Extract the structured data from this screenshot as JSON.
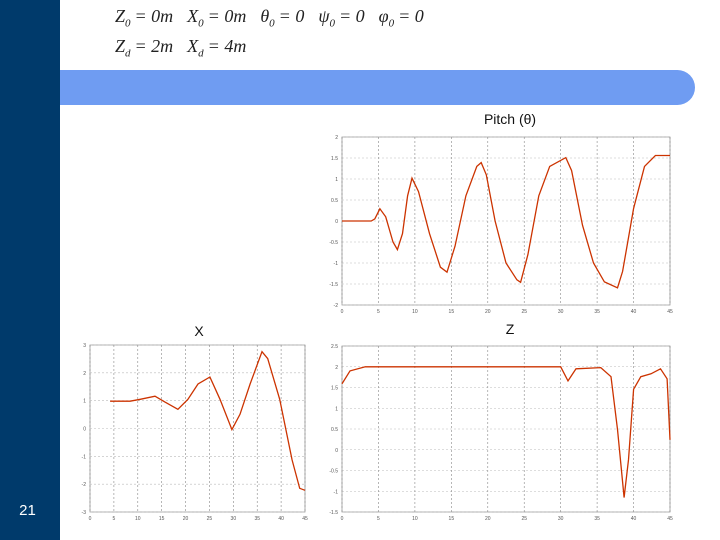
{
  "equations": [
    [
      {
        "symbol": "Z",
        "sub": "0",
        "rhs": "= 0m"
      },
      {
        "symbol": "X",
        "sub": "0",
        "rhs": "= 0m"
      },
      {
        "symbol": "θ",
        "sub": "0",
        "rhs": "= 0"
      },
      {
        "symbol": "ψ",
        "sub": "0",
        "rhs": "= 0"
      },
      {
        "symbol": "φ",
        "sub": "0",
        "rhs": "= 0"
      }
    ],
    [
      {
        "symbol": "Z",
        "sub": "d",
        "rhs": "= 2m"
      },
      {
        "symbol": "X",
        "sub": "d",
        "rhs": "= 4m"
      }
    ]
  ],
  "page_number": "21",
  "chart_data": [
    {
      "type": "line",
      "title": "Pitch (θ)",
      "color": "#cc3300",
      "grid": true,
      "x": [
        0,
        4,
        4.5,
        5.2,
        6,
        7,
        7.6,
        8.3,
        9,
        9.6,
        10.5,
        12,
        13.5,
        14.4,
        15.5,
        17,
        18.5,
        19.1,
        19.8,
        21,
        22.5,
        24,
        24.5,
        25.5,
        27,
        28.5,
        30.7,
        31.5,
        33,
        34.5,
        36,
        37.8,
        38.5,
        40,
        41.5,
        43,
        45
      ],
      "values": [
        0,
        0,
        0.05,
        0.29,
        0.1,
        -0.5,
        -0.68,
        -0.3,
        0.6,
        1.02,
        0.7,
        -0.3,
        -1.1,
        -1.22,
        -0.6,
        0.6,
        1.3,
        1.39,
        1.1,
        0,
        -1.0,
        -1.4,
        -1.46,
        -0.8,
        0.6,
        1.3,
        1.51,
        1.2,
        -0.1,
        -1.0,
        -1.45,
        -1.59,
        -1.2,
        0.3,
        1.3,
        1.56,
        1.56
      ],
      "xlim": [
        0,
        45
      ],
      "xticks": [
        0,
        5,
        10,
        15,
        20,
        25,
        30,
        35,
        40,
        45
      ],
      "ylim": [
        -2,
        2
      ],
      "yticks": [
        -2,
        -1.5,
        -1,
        -0.5,
        0,
        0.5,
        1,
        1.5,
        2
      ]
    },
    {
      "type": "line",
      "title": "X",
      "color": "#cc3300",
      "grid": true,
      "x": [
        4.2,
        8.4,
        10.5,
        13.6,
        15.7,
        18.4,
        20.5,
        22.6,
        25.1,
        27.2,
        29.7,
        31.4,
        33.5,
        36,
        37.2,
        39.7,
        42.3,
        43.9,
        45
      ],
      "values": [
        0.98,
        0.98,
        1.05,
        1.16,
        0.95,
        0.69,
        1.05,
        1.6,
        1.85,
        1.05,
        -0.04,
        0.51,
        1.6,
        2.76,
        2.51,
        1.05,
        -1.13,
        -2.15,
        -2.22
      ],
      "xlim": [
        0,
        45
      ],
      "xticks": [
        0,
        5,
        10,
        15,
        20,
        25,
        30,
        35,
        40,
        45
      ],
      "ylim": [
        -3,
        3
      ],
      "yticks": [
        -3,
        -2,
        -1,
        0,
        1,
        2,
        3
      ]
    },
    {
      "type": "line",
      "title": "Z",
      "color": "#cc3300",
      "grid": true,
      "x": [
        0,
        1.1,
        3.2,
        4.95,
        30,
        31,
        32.1,
        35.5,
        36.9,
        37.8,
        38.7,
        39.3,
        40,
        41,
        42.4,
        43.7,
        44.6,
        45
      ],
      "values": [
        1.59,
        1.9,
        2,
        2,
        2,
        1.66,
        1.95,
        1.98,
        1.76,
        0.49,
        -1.15,
        -0.24,
        1.46,
        1.76,
        1.83,
        1.95,
        1.71,
        0.24
      ],
      "xlim": [
        0,
        45
      ],
      "xticks": [
        0,
        5,
        10,
        15,
        20,
        25,
        30,
        35,
        40,
        45
      ],
      "ylim": [
        -1.5,
        2.5
      ],
      "yticks": [
        -1.5,
        -1,
        -0.5,
        0,
        0.5,
        1,
        1.5,
        2,
        2.5
      ]
    }
  ]
}
